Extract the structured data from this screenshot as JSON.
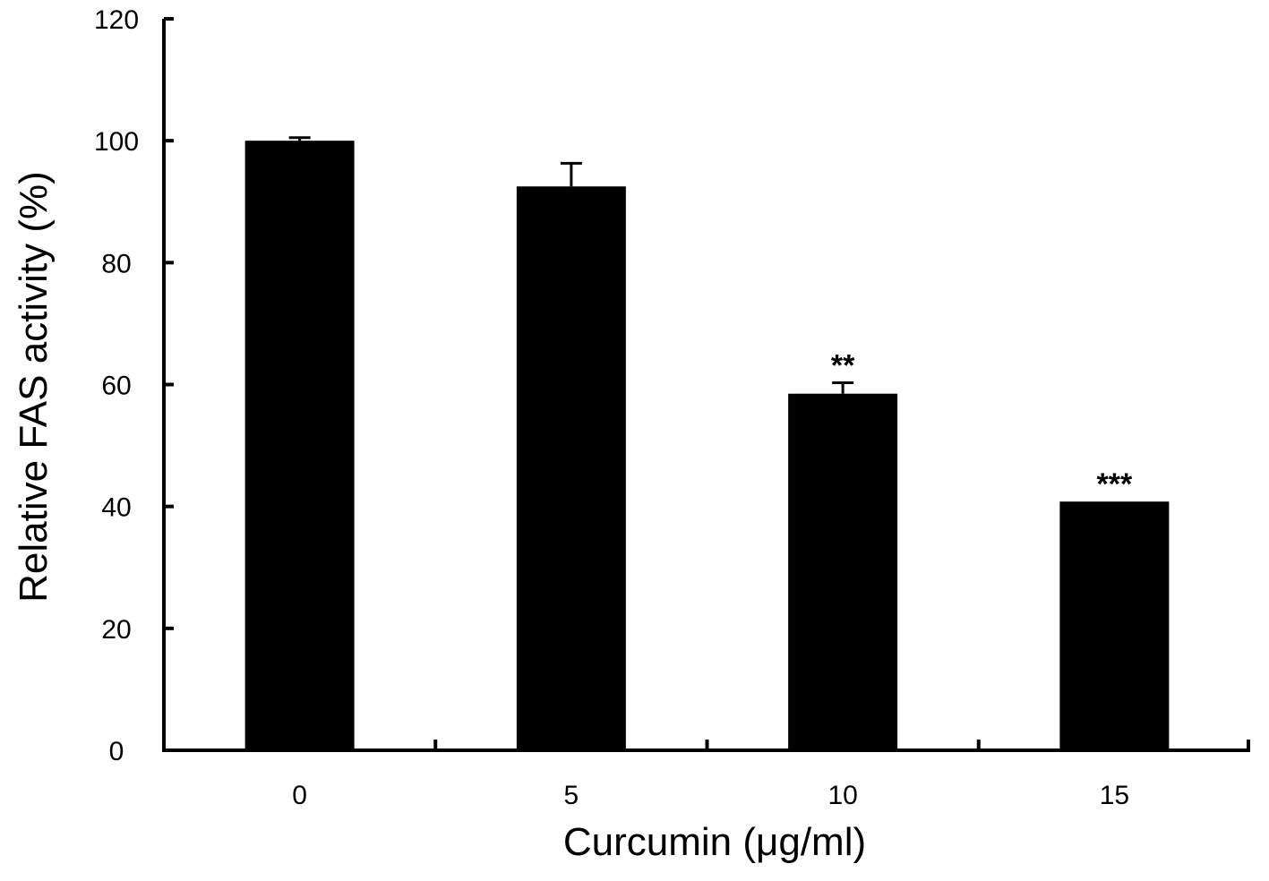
{
  "chart_data": {
    "type": "bar",
    "title": "",
    "xlabel": "Curcumin (μg/ml)",
    "ylabel": "Relative FAS activity (%)",
    "categories": [
      "0",
      "5",
      "10",
      "15"
    ],
    "values": [
      100,
      92.5,
      58.5,
      40.8
    ],
    "error_upper": [
      0.5,
      3.8,
      1.8,
      0
    ],
    "annotations": [
      "",
      "",
      "**",
      "***"
    ],
    "ylim": [
      0,
      120
    ],
    "yticks": [
      0,
      20,
      40,
      60,
      80,
      100,
      120
    ],
    "grid": false,
    "legend": "none",
    "bar_color": "#000000"
  }
}
